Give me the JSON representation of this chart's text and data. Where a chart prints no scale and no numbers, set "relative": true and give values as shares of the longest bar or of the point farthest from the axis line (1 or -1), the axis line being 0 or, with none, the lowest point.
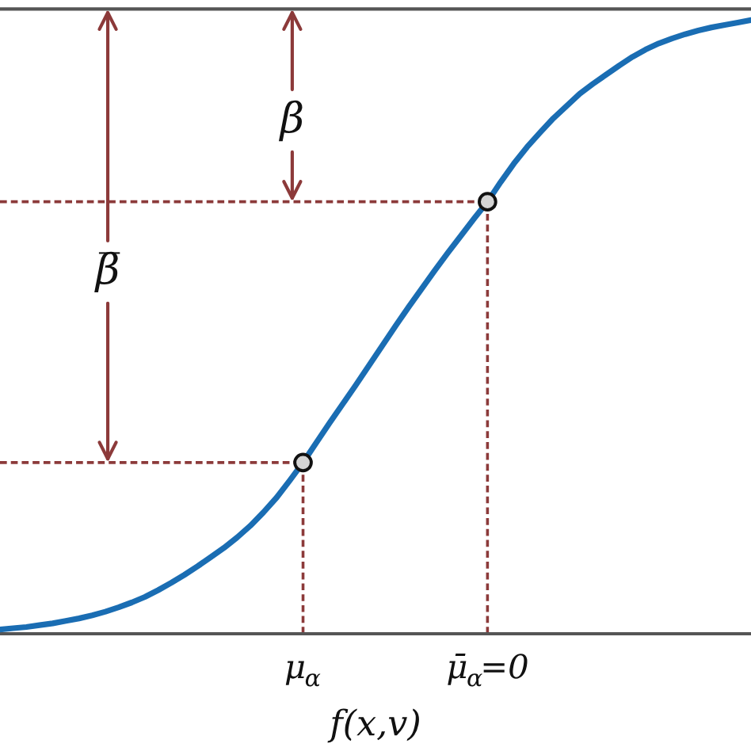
{
  "chart_data": {
    "type": "line",
    "relative": true,
    "xlabel": "f(x,v)",
    "tick_labels": "x",
    "categories": [
      null,
      null,
      null,
      null,
      null,
      null,
      null,
      null,
      null,
      null,
      null,
      null,
      null,
      null,
      null,
      null,
      null,
      null,
      null,
      null,
      null,
      null,
      null,
      "μ$_{α}$",
      null,
      null,
      null,
      null,
      null,
      null,
      null,
      null,
      null,
      null,
      null,
      null,
      null,
      "μ̄$_{α}$=0",
      null,
      null,
      null,
      null,
      null,
      null,
      null,
      null,
      null,
      null,
      null,
      null,
      null,
      null,
      null,
      null,
      null,
      null,
      null,
      null
    ],
    "series": [
      {
        "color": "#1a6db3",
        "values": [
          0.007,
          0.009,
          0.011,
          0.014,
          0.017,
          0.021,
          0.025,
          0.03,
          0.036,
          0.043,
          0.051,
          0.06,
          0.071,
          0.083,
          0.096,
          0.11,
          0.125,
          0.14,
          0.157,
          0.176,
          0.198,
          0.222,
          0.25,
          0.279,
          0.311,
          0.343,
          0.374,
          0.405,
          0.437,
          0.469,
          0.501,
          0.532,
          0.562,
          0.592,
          0.621,
          0.649,
          0.677,
          0.704,
          0.736,
          0.766,
          0.793,
          0.817,
          0.84,
          0.86,
          0.88,
          0.896,
          0.911,
          0.926,
          0.94,
          0.952,
          0.962,
          0.97,
          0.977,
          0.983,
          0.988,
          0.992,
          0.996,
          1.0
        ]
      },
      {
        "line_style": "dashed",
        "color": "#8c3a3a",
        "values": [
          0.704,
          0.704,
          0.704,
          0.704,
          0.704,
          0.704,
          0.704,
          0.704,
          0.704,
          0.704,
          0.704,
          0.704,
          0.704,
          0.704,
          0.704,
          0.704,
          0.704,
          0.704,
          0.704,
          0.704,
          0.704,
          0.704,
          0.704,
          0.704,
          0.704,
          0.704,
          0.704,
          0.704,
          0.704,
          0.704,
          0.704,
          0.704,
          0.704,
          0.704,
          0.704,
          0.704,
          0.704,
          0.704,
          null,
          null,
          null,
          null,
          null,
          null,
          null,
          null,
          null,
          null,
          null,
          null,
          null,
          null,
          null,
          null,
          null,
          null,
          null,
          null
        ]
      },
      {
        "line_style": "dashed",
        "color": "#8c3a3a",
        "values": [
          0.279,
          0.279,
          0.279,
          0.279,
          0.279,
          0.279,
          0.279,
          0.279,
          0.279,
          0.279,
          0.279,
          0.279,
          0.279,
          0.279,
          0.279,
          0.279,
          0.279,
          0.279,
          0.279,
          0.279,
          0.279,
          0.279,
          0.279,
          0.279,
          null,
          null,
          null,
          null,
          null,
          null,
          null,
          null,
          null,
          null,
          null,
          null,
          null,
          null,
          null,
          null,
          null,
          null,
          null,
          null,
          null,
          null,
          null,
          null,
          null,
          null,
          null,
          null,
          null,
          null,
          null,
          null,
          null,
          null
        ]
      },
      {
        "line_style": "dashed",
        "color": "#8c3a3a",
        "x": [
          "μ$_{α}$",
          "μ$_{α}$"
        ],
        "values": [
          0,
          0.279
        ]
      },
      {
        "line_style": "dashed",
        "color": "#8c3a3a",
        "x": [
          "μ̄$_{α}$=0",
          "μ̄$_{α}$=0"
        ],
        "values": [
          0,
          0.704
        ]
      },
      {
        "type": "scatter",
        "marker": "circle",
        "color": "#d4d4d4",
        "x": [
          "μ$_{α}$",
          "μ̄$_{α}$=0"
        ],
        "values": [
          0.279,
          0.704
        ]
      }
    ],
    "annotations": [
      {
        "text": "β",
        "y": 0.704
      },
      {
        "text": "β̅",
        "y": 0.279
      }
    ]
  }
}
